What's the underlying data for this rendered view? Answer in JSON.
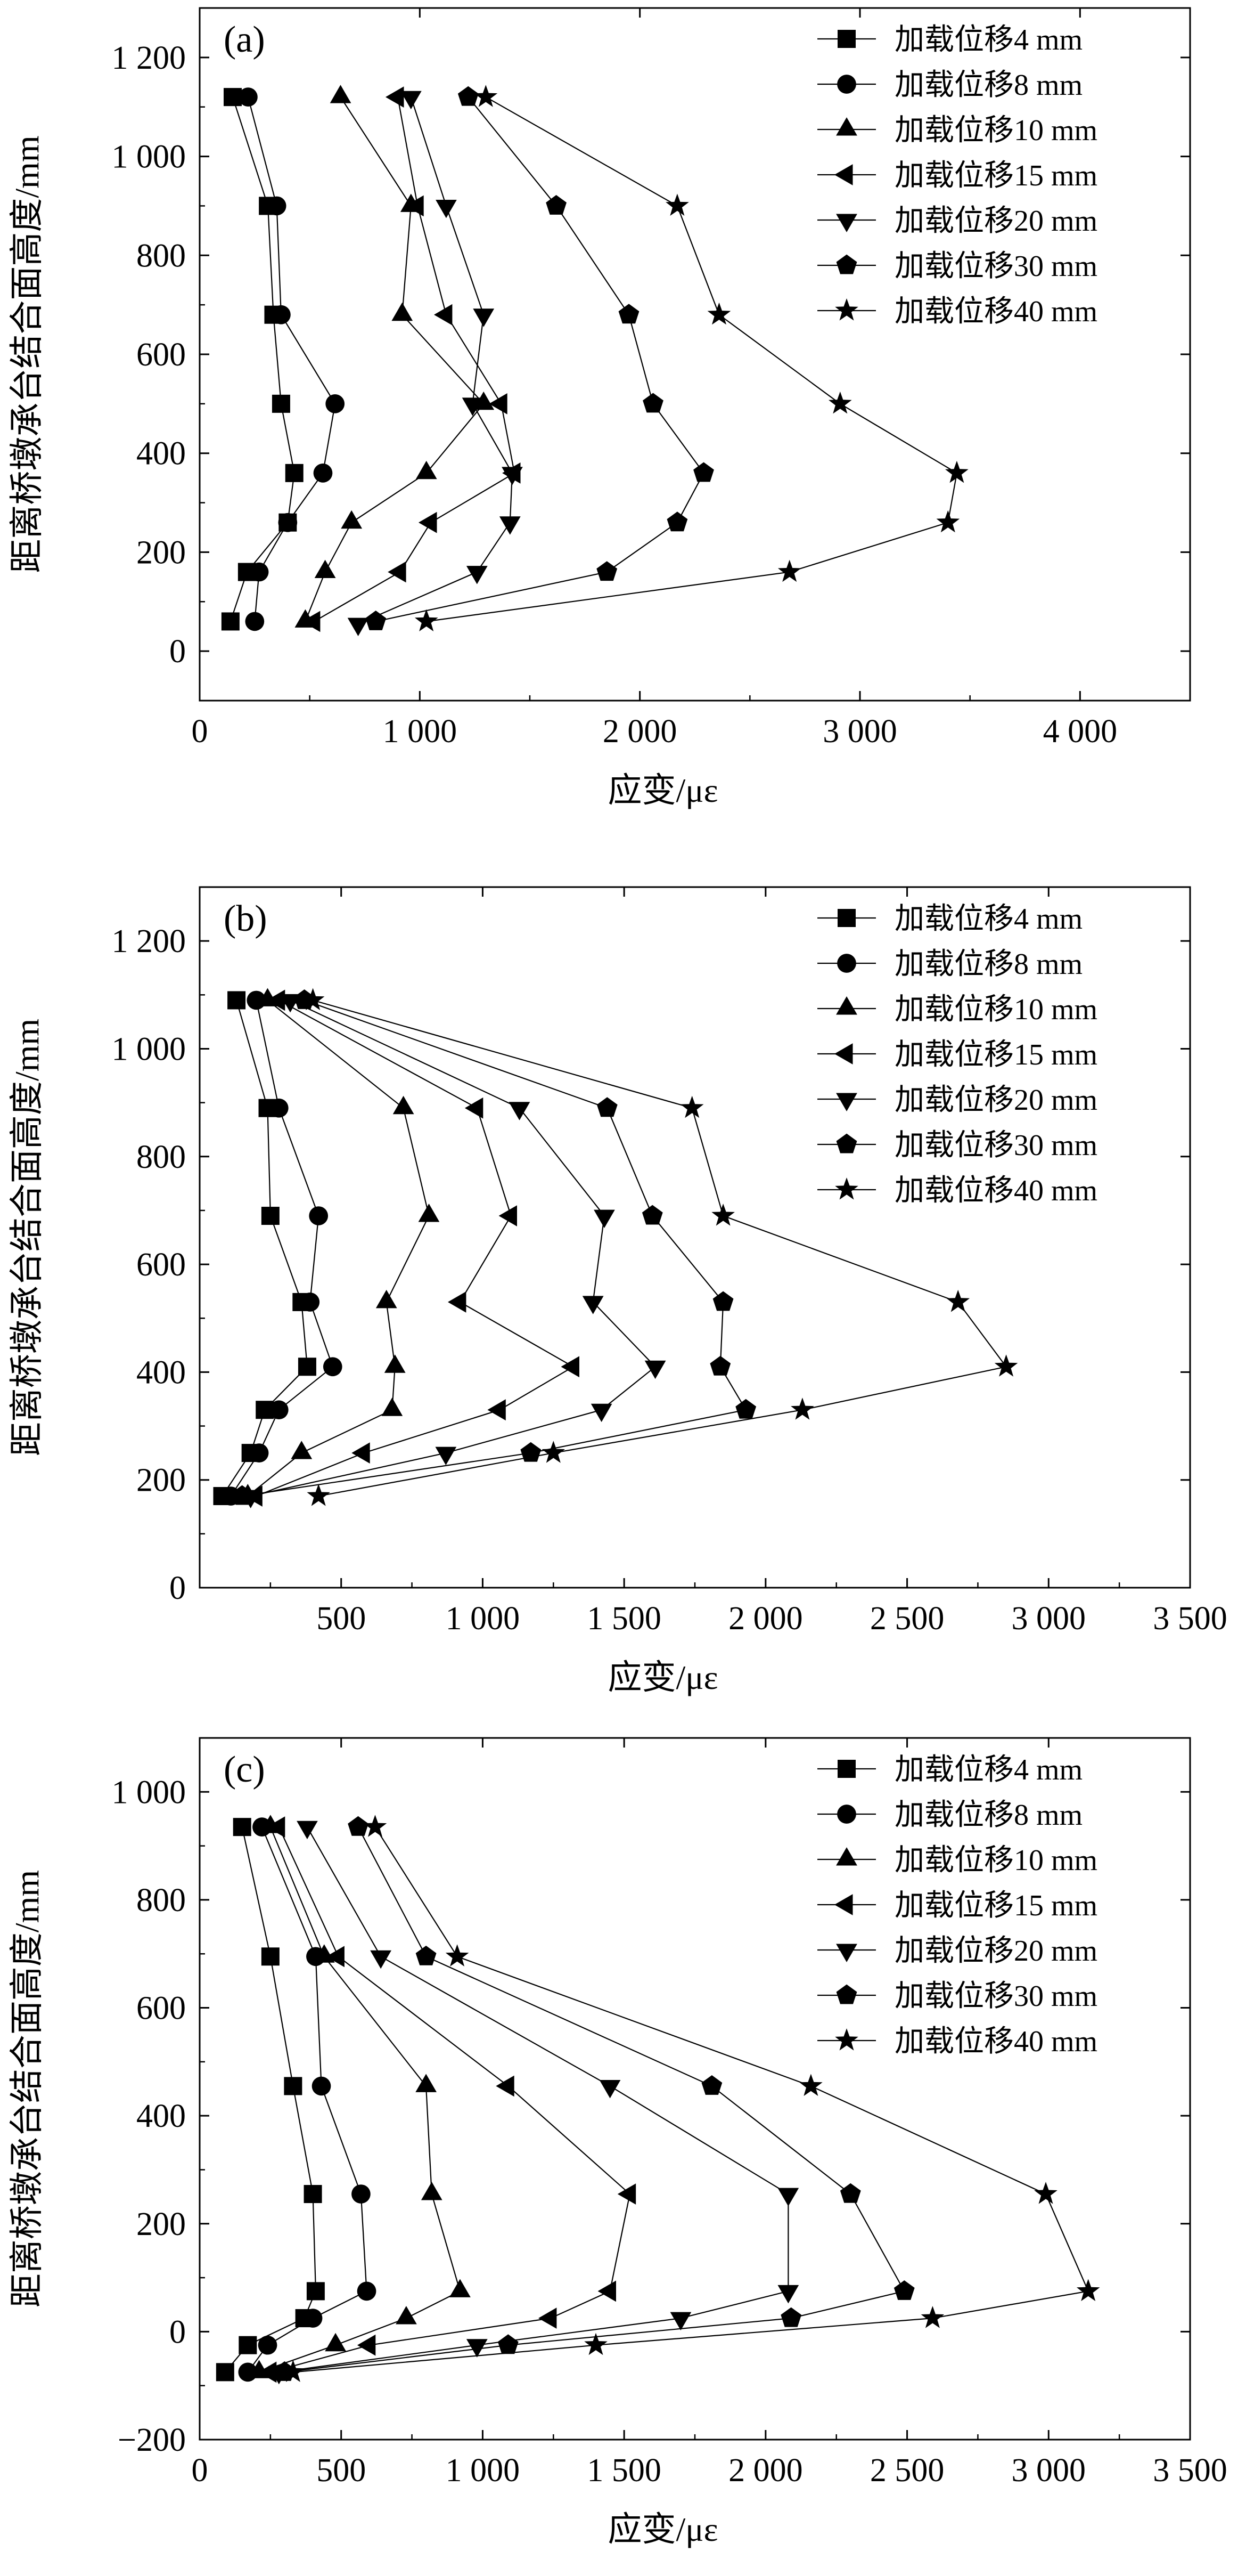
{
  "series_names": [
    "加载位移4 mm",
    "加载位移8 mm",
    "加载位移10 mm",
    "加载位移15 mm",
    "加载位移20 mm",
    "加载位移30 mm",
    "加载位移40 mm"
  ],
  "chart_data": [
    {
      "type": "line",
      "panel_label": "(a)",
      "xlabel": "应变/με",
      "ylabel": "距离桥墩承台结合面高度/mm",
      "xlim": [
        0,
        4500
      ],
      "ylim": [
        -100,
        1300
      ],
      "xticks": [
        0,
        1000,
        2000,
        3000,
        4000
      ],
      "xtick_labels": [
        "0",
        "1 000",
        "2 000",
        "3 000",
        "4 000"
      ],
      "yticks": [
        0,
        200,
        400,
        600,
        800,
        1000,
        1200
      ],
      "ytick_labels": [
        "0",
        "200",
        "400",
        "600",
        "800",
        "1 000",
        "1 200"
      ],
      "legend_position": "top-right",
      "series": [
        {
          "name": "加载位移4 mm",
          "marker": "square",
          "points": [
            [
              150,
              1120
            ],
            [
              310,
              900
            ],
            [
              335,
              680
            ],
            [
              370,
              500
            ],
            [
              430,
              360
            ],
            [
              400,
              260
            ],
            [
              215,
              160
            ],
            [
              140,
              60
            ]
          ]
        },
        {
          "name": "加载位移8 mm",
          "marker": "circle",
          "points": [
            [
              220,
              1120
            ],
            [
              350,
              900
            ],
            [
              370,
              680
            ],
            [
              615,
              500
            ],
            [
              560,
              360
            ],
            [
              400,
              260
            ],
            [
              270,
              160
            ],
            [
              250,
              60
            ]
          ]
        },
        {
          "name": "加载位移10 mm",
          "marker": "triangle-up",
          "points": [
            [
              640,
              1120
            ],
            [
              960,
              900
            ],
            [
              920,
              680
            ],
            [
              1290,
              500
            ],
            [
              1030,
              360
            ],
            [
              690,
              260
            ],
            [
              570,
              160
            ],
            [
              480,
              60
            ]
          ]
        },
        {
          "name": "加载位移15 mm",
          "marker": "triangle-left",
          "points": [
            [
              900,
              1120
            ],
            [
              990,
              900
            ],
            [
              1120,
              680
            ],
            [
              1370,
              500
            ],
            [
              1430,
              360
            ],
            [
              1050,
              260
            ],
            [
              910,
              160
            ],
            [
              520,
              60
            ]
          ]
        },
        {
          "name": "加载位移20 mm",
          "marker": "triangle-down",
          "points": [
            [
              960,
              1120
            ],
            [
              1120,
              900
            ],
            [
              1290,
              680
            ],
            [
              1240,
              500
            ],
            [
              1420,
              360
            ],
            [
              1410,
              260
            ],
            [
              1260,
              160
            ],
            [
              720,
              55
            ]
          ]
        },
        {
          "name": "加载位移30 mm",
          "marker": "pentagon",
          "points": [
            [
              1220,
              1120
            ],
            [
              1620,
              900
            ],
            [
              1950,
              680
            ],
            [
              2060,
              500
            ],
            [
              2290,
              360
            ],
            [
              2170,
              260
            ],
            [
              1850,
              160
            ],
            [
              800,
              60
            ]
          ]
        },
        {
          "name": "加载位移40 mm",
          "marker": "star",
          "points": [
            [
              1300,
              1120
            ],
            [
              2170,
              900
            ],
            [
              2360,
              680
            ],
            [
              2910,
              500
            ],
            [
              3440,
              360
            ],
            [
              3400,
              260
            ],
            [
              2680,
              160
            ],
            [
              1030,
              60
            ]
          ]
        }
      ]
    },
    {
      "type": "line",
      "panel_label": "(b)",
      "xlabel": "应变/με",
      "ylabel": "距离桥墩承台结合面高度/mm",
      "xlim": [
        0,
        3500
      ],
      "ylim": [
        0,
        1300
      ],
      "xticks": [
        500,
        1000,
        1500,
        2000,
        2500,
        3000,
        3500
      ],
      "xtick_labels": [
        "500",
        "1 000",
        "1 500",
        "2 000",
        "2 500",
        "3 000",
        "3 500"
      ],
      "yticks": [
        0,
        200,
        400,
        600,
        800,
        1000,
        1200
      ],
      "ytick_labels": [
        "0",
        "200",
        "400",
        "600",
        "800",
        "1 000",
        "1 200"
      ],
      "legend_position": "top-right",
      "series": [
        {
          "name": "加载位移4 mm",
          "marker": "square",
          "points": [
            [
              130,
              1090
            ],
            [
              240,
              890
            ],
            [
              250,
              690
            ],
            [
              360,
              530
            ],
            [
              380,
              410
            ],
            [
              230,
              330
            ],
            [
              180,
              250
            ],
            [
              80,
              170
            ]
          ]
        },
        {
          "name": "加载位移8 mm",
          "marker": "circle",
          "points": [
            [
              200,
              1090
            ],
            [
              280,
              890
            ],
            [
              420,
              690
            ],
            [
              390,
              530
            ],
            [
              470,
              410
            ],
            [
              280,
              330
            ],
            [
              210,
              250
            ],
            [
              110,
              170
            ]
          ]
        },
        {
          "name": "加载位移10 mm",
          "marker": "triangle-up",
          "points": [
            [
              240,
              1090
            ],
            [
              720,
              890
            ],
            [
              810,
              690
            ],
            [
              660,
              530
            ],
            [
              690,
              410
            ],
            [
              680,
              330
            ],
            [
              360,
              250
            ],
            [
              170,
              170
            ]
          ]
        },
        {
          "name": "加载位移15 mm",
          "marker": "triangle-left",
          "points": [
            [
              280,
              1090
            ],
            [
              980,
              890
            ],
            [
              1100,
              690
            ],
            [
              920,
              530
            ],
            [
              1320,
              410
            ],
            [
              1060,
              330
            ],
            [
              580,
              250
            ],
            [
              200,
              170
            ]
          ]
        },
        {
          "name": "加载位移20 mm",
          "marker": "triangle-down",
          "points": [
            [
              320,
              1090
            ],
            [
              1130,
              890
            ],
            [
              1430,
              690
            ],
            [
              1390,
              530
            ],
            [
              1610,
              410
            ],
            [
              1420,
              330
            ],
            [
              870,
              250
            ],
            [
              180,
              170
            ]
          ]
        },
        {
          "name": "加载位移30 mm",
          "marker": "pentagon",
          "points": [
            [
              370,
              1090
            ],
            [
              1440,
              890
            ],
            [
              1600,
              690
            ],
            [
              1850,
              530
            ],
            [
              1840,
              410
            ],
            [
              1930,
              330
            ],
            [
              1170,
              250
            ],
            [
              150,
              170
            ]
          ]
        },
        {
          "name": "加载位移40 mm",
          "marker": "star",
          "points": [
            [
              400,
              1090
            ],
            [
              1740,
              890
            ],
            [
              1850,
              690
            ],
            [
              2680,
              530
            ],
            [
              2850,
              410
            ],
            [
              2130,
              330
            ],
            [
              1250,
              250
            ],
            [
              420,
              170
            ]
          ]
        }
      ]
    },
    {
      "type": "line",
      "panel_label": "(c)",
      "xlabel": "应变/με",
      "ylabel": "距离桥墩承台结合面高度/mm",
      "xlim": [
        0,
        3500
      ],
      "ylim": [
        -200,
        1100
      ],
      "xticks": [
        0,
        500,
        1000,
        1500,
        2000,
        2500,
        3000,
        3500
      ],
      "xtick_labels": [
        "0",
        "500",
        "1 000",
        "1 500",
        "2 000",
        "2 500",
        "3 000",
        "3 500"
      ],
      "yticks": [
        -200,
        0,
        200,
        400,
        600,
        800,
        1000
      ],
      "ytick_labels": [
        "−200",
        "0",
        "200",
        "400",
        "600",
        "800",
        "1 000"
      ],
      "legend_position": "top-right",
      "series": [
        {
          "name": "加载位移4 mm",
          "marker": "square",
          "points": [
            [
              150,
              935
            ],
            [
              250,
              695
            ],
            [
              330,
              455
            ],
            [
              400,
              255
            ],
            [
              410,
              75
            ],
            [
              370,
              25
            ],
            [
              170,
              -25
            ],
            [
              90,
              -75
            ]
          ]
        },
        {
          "name": "加载位移8 mm",
          "marker": "circle",
          "points": [
            [
              220,
              935
            ],
            [
              410,
              695
            ],
            [
              430,
              455
            ],
            [
              570,
              255
            ],
            [
              590,
              75
            ],
            [
              400,
              25
            ],
            [
              240,
              -25
            ],
            [
              170,
              -75
            ]
          ]
        },
        {
          "name": "加载位移10 mm",
          "marker": "triangle-up",
          "points": [
            [
              250,
              935
            ],
            [
              440,
              695
            ],
            [
              800,
              455
            ],
            [
              820,
              255
            ],
            [
              920,
              75
            ],
            [
              730,
              25
            ],
            [
              480,
              -25
            ],
            [
              210,
              -75
            ]
          ]
        },
        {
          "name": "加载位移15 mm",
          "marker": "triangle-left",
          "points": [
            [
              280,
              935
            ],
            [
              490,
              695
            ],
            [
              1090,
              455
            ],
            [
              1520,
              255
            ],
            [
              1450,
              75
            ],
            [
              1240,
              25
            ],
            [
              600,
              -25
            ],
            [
              250,
              -75
            ]
          ]
        },
        {
          "name": "加载位移20 mm",
          "marker": "triangle-down",
          "points": [
            [
              380,
              935
            ],
            [
              640,
              695
            ],
            [
              1450,
              455
            ],
            [
              2080,
              255
            ],
            [
              2080,
              75
            ],
            [
              1700,
              25
            ],
            [
              980,
              -25
            ],
            [
              280,
              -75
            ]
          ]
        },
        {
          "name": "加载位移30 mm",
          "marker": "pentagon",
          "points": [
            [
              560,
              935
            ],
            [
              800,
              695
            ],
            [
              1810,
              455
            ],
            [
              2300,
              255
            ],
            [
              2490,
              75
            ],
            [
              2090,
              25
            ],
            [
              1090,
              -25
            ],
            [
              300,
              -75
            ]
          ]
        },
        {
          "name": "加载位移40 mm",
          "marker": "star",
          "points": [
            [
              620,
              935
            ],
            [
              910,
              695
            ],
            [
              2160,
              455
            ],
            [
              2990,
              255
            ],
            [
              3140,
              75
            ],
            [
              2590,
              25
            ],
            [
              1400,
              -25
            ],
            [
              330,
              -75
            ]
          ]
        }
      ]
    }
  ]
}
